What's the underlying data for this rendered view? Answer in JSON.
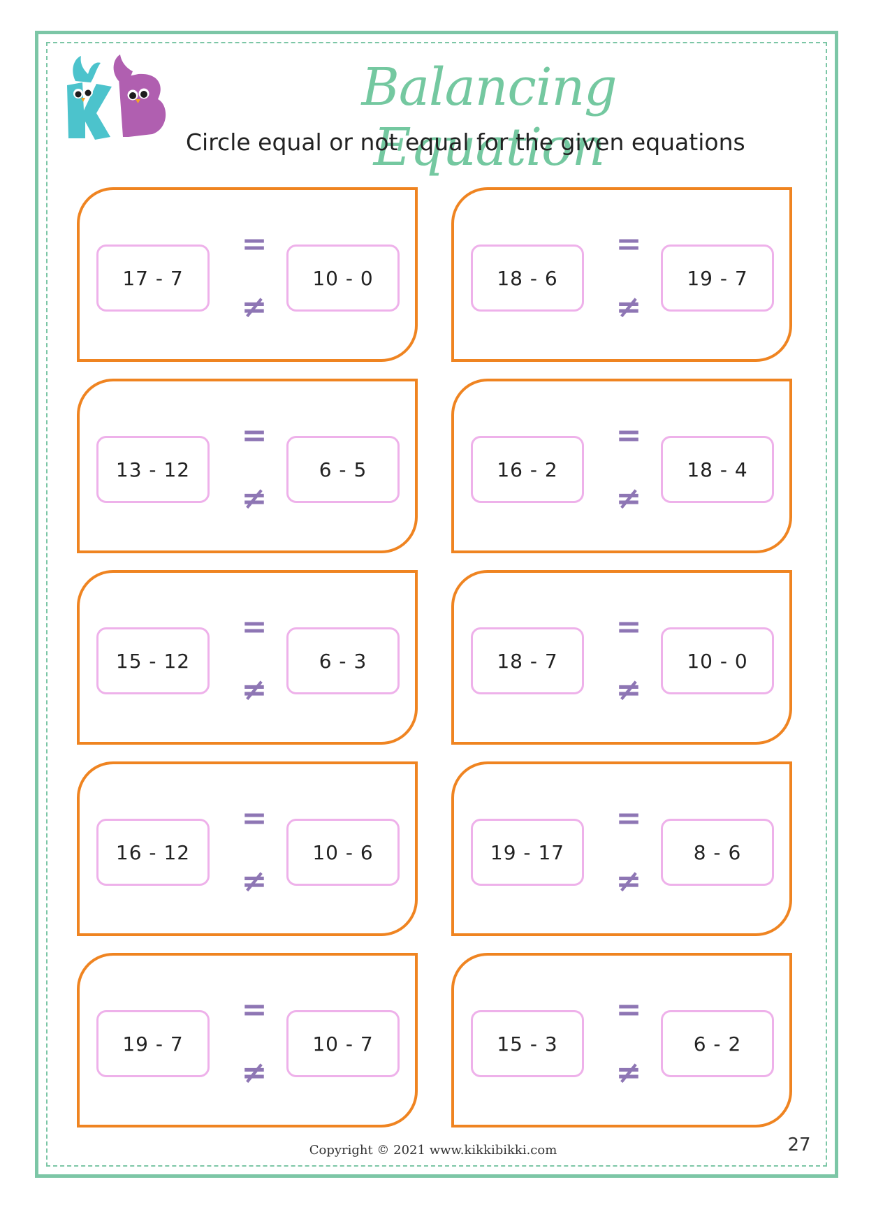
{
  "header": {
    "title": "Balancing Equation",
    "subtitle": "Circle equal or not equal for the given equations",
    "logo_text": "KB"
  },
  "symbols": {
    "equal": "=",
    "not_equal": "≠"
  },
  "cards": [
    {
      "left": "17 - 7",
      "right": "10 - 0"
    },
    {
      "left": "18 - 6",
      "right": "19 - 7"
    },
    {
      "left": "13 - 12",
      "right": "6 - 5"
    },
    {
      "left": "16 - 2",
      "right": "18 - 4"
    },
    {
      "left": "15 - 12",
      "right": "6 - 3"
    },
    {
      "left": "18 - 7",
      "right": "10 - 0"
    },
    {
      "left": "16 - 12",
      "right": "10 - 6"
    },
    {
      "left": "19 - 17",
      "right": "8 - 6"
    },
    {
      "left": "19 - 7",
      "right": "10 - 7"
    },
    {
      "left": "15 - 3",
      "right": "6 - 2"
    }
  ],
  "footer": {
    "copyright": "Copyright © 2021 www.kikkibikki.com",
    "page_number": "27"
  },
  "colors": {
    "frame": "#7cc6a6",
    "title": "#74c8a0",
    "card_border": "#ef8421",
    "expr_border": "#eeb1ea",
    "symbol": "#8e76b4",
    "logo_k": "#4cc3cc",
    "logo_b": "#b05fb0"
  }
}
